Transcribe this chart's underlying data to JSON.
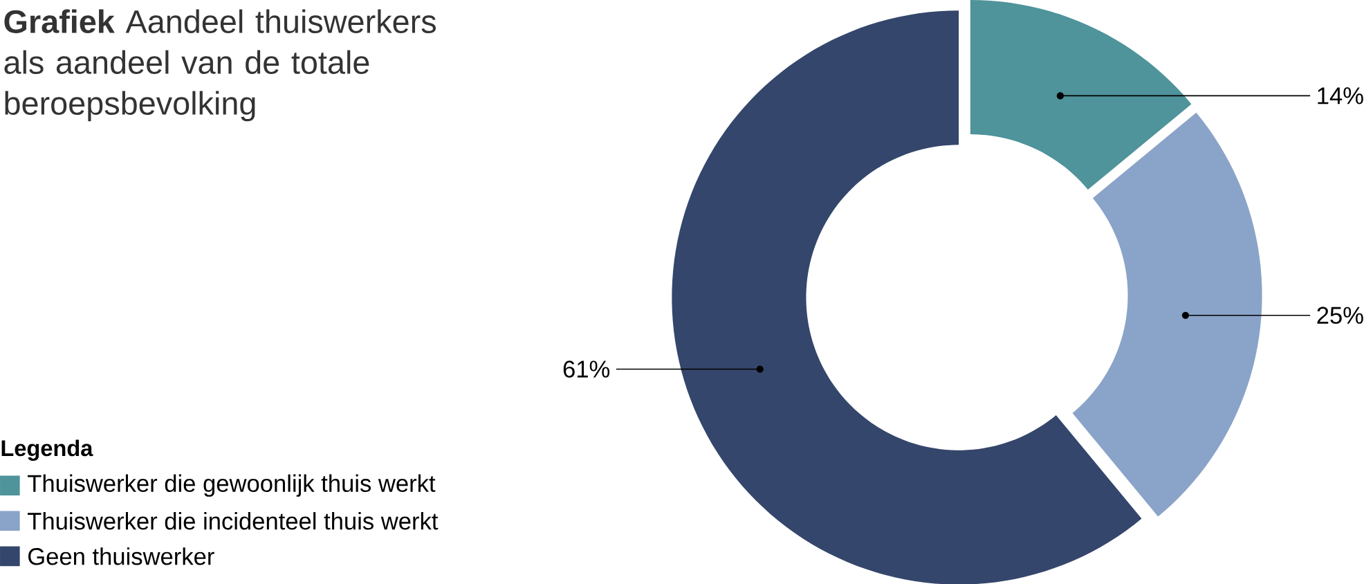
{
  "chart_data": {
    "type": "donut",
    "title": "**Grafiek** Aandeel thuiswerkers als aandeel van de totale beroepsbevolking",
    "categories": [
      "Thuiswerker die gewoonlijk thuis werkt",
      "Thuiswerker die incidenteel thuis werkt",
      "Geen thuiswerker"
    ],
    "values": [
      14,
      25,
      61
    ],
    "colors": [
      "#4f939b",
      "#8aa3c8",
      "#34466b"
    ],
    "value_labels": [
      "14%",
      "25%",
      "61%"
    ],
    "legend_title": "Legenda",
    "legend": "bottom left"
  }
}
